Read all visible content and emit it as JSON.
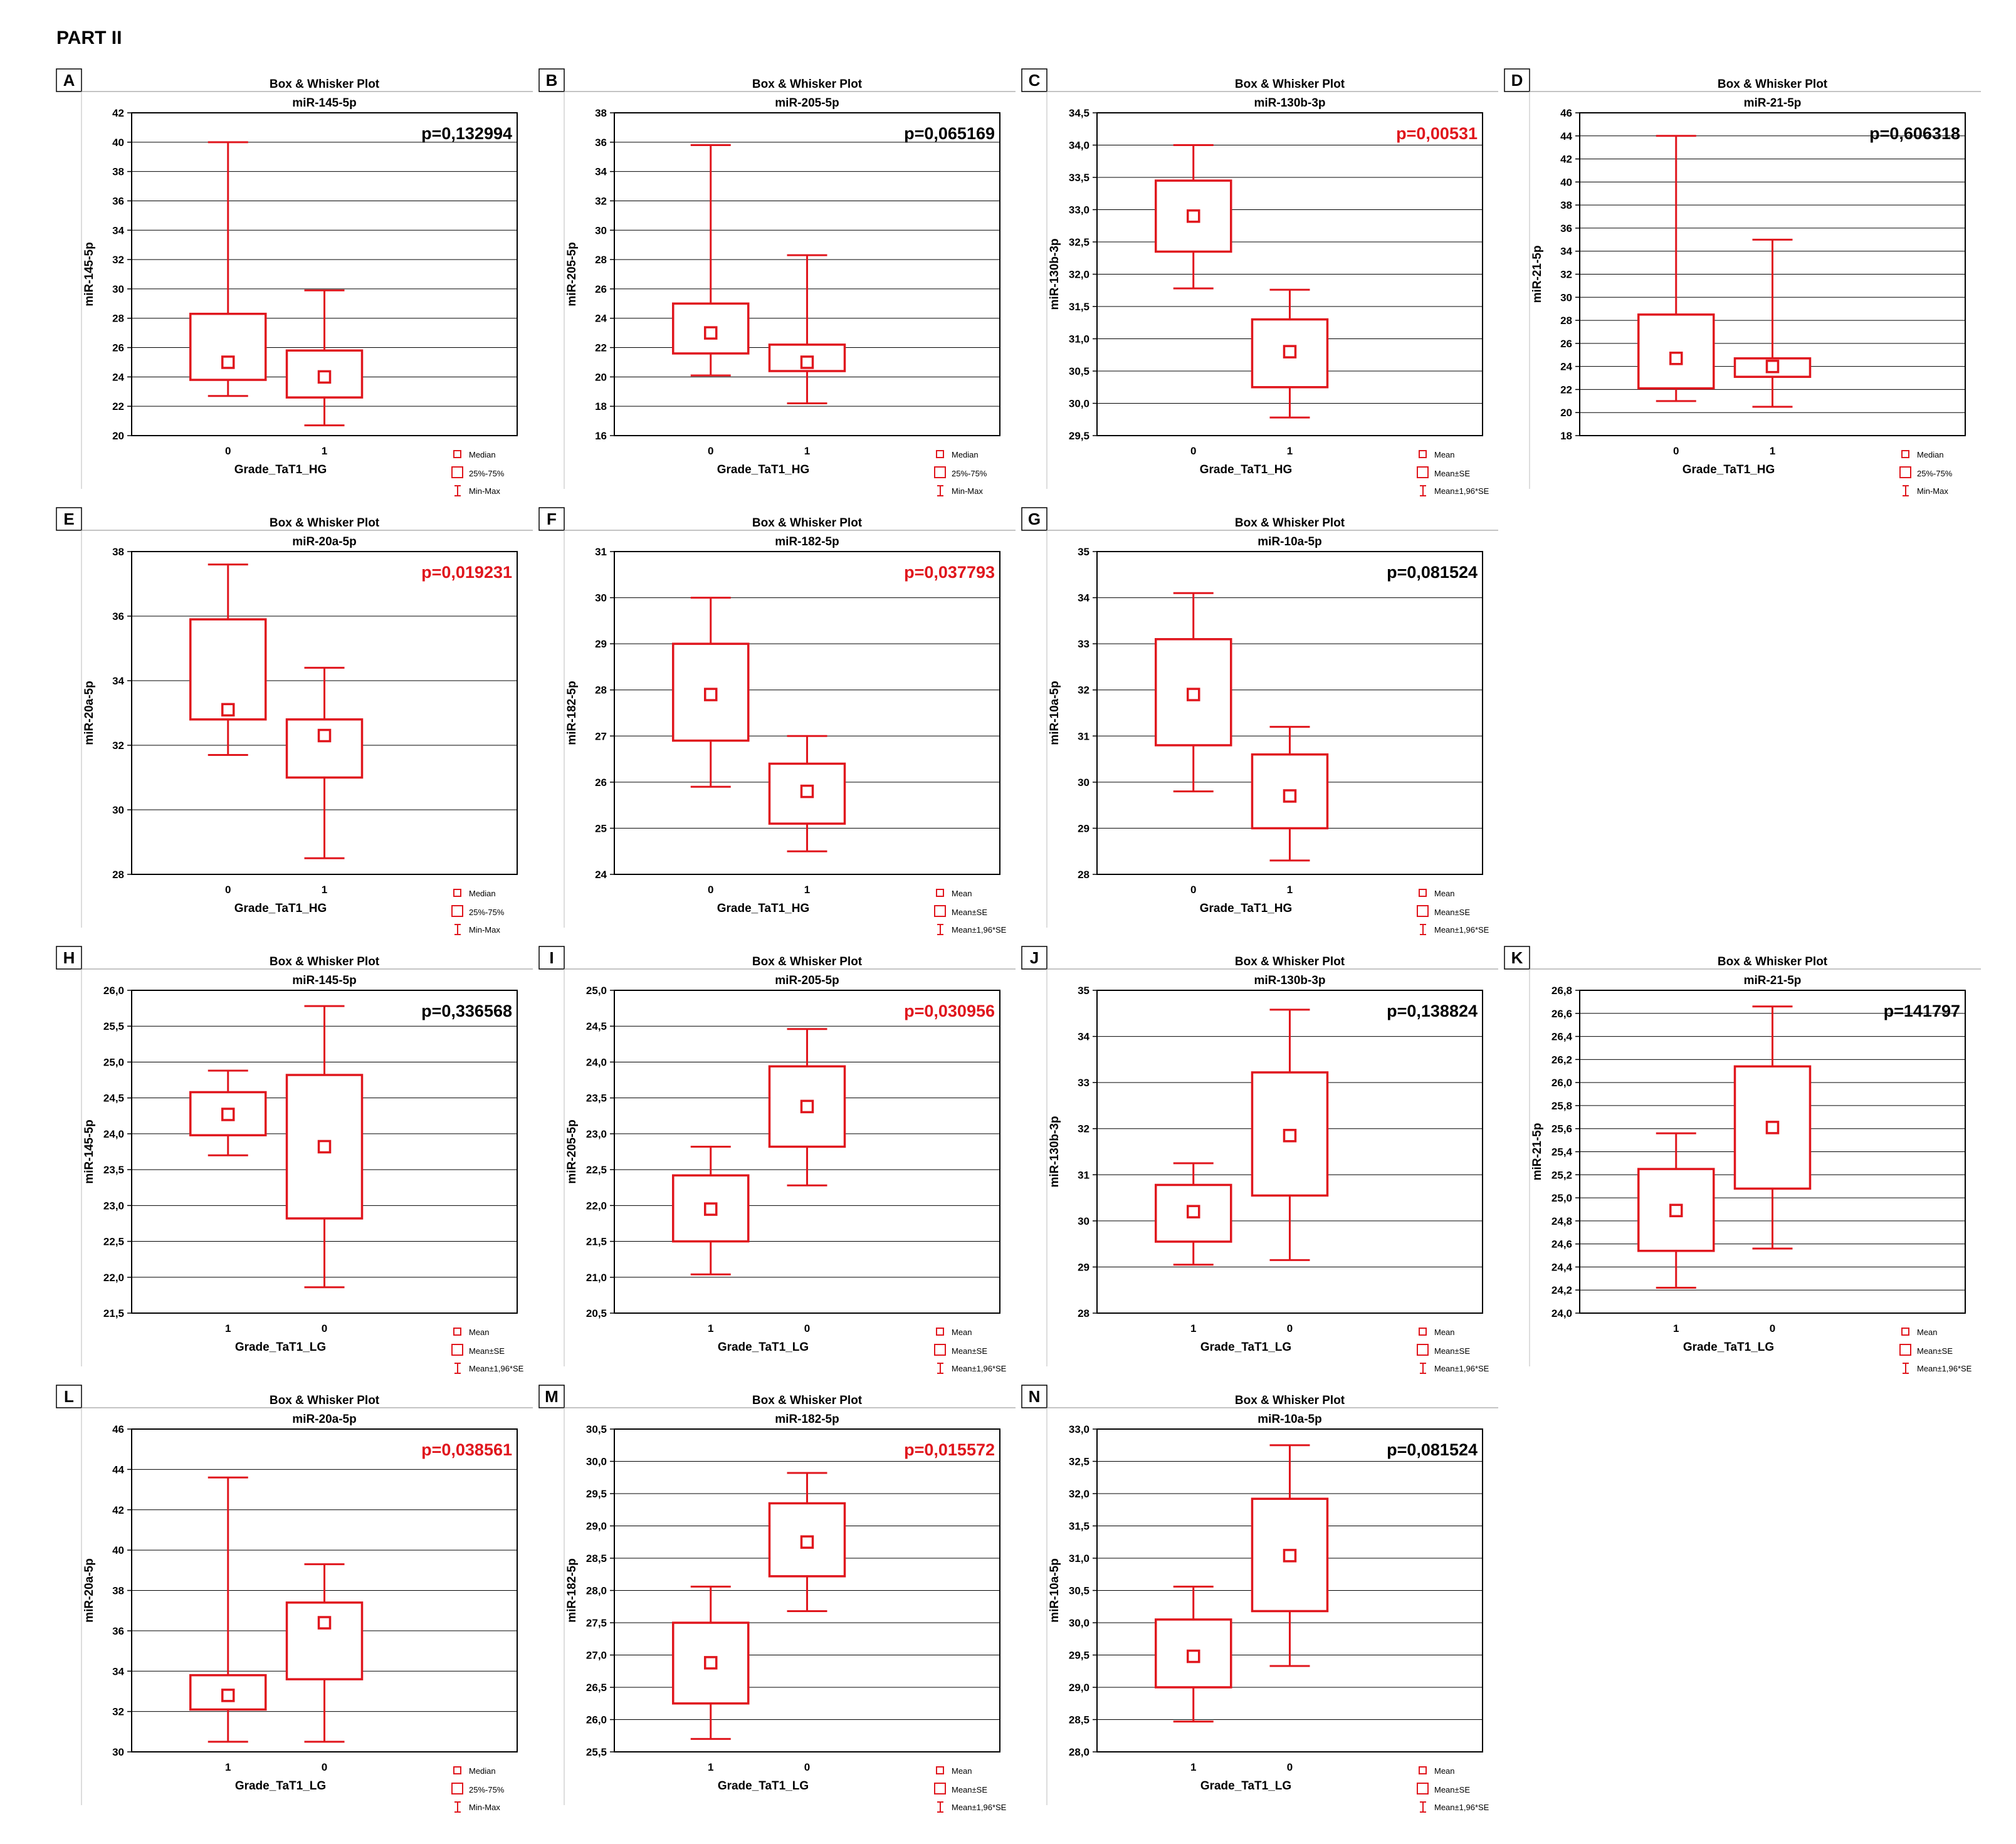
{
  "part_title": "PART II",
  "colors": {
    "box": "#e0161d",
    "grid": "#000000",
    "text": "#000000",
    "pvalue_sig": "#e0161d",
    "pvalue_ns": "#000000"
  },
  "legend_sets": {
    "median": [
      "Median",
      "25%-75%",
      "Min-Max"
    ],
    "mean": [
      "Mean",
      "Mean±SE",
      "Mean±1,96*SE"
    ]
  },
  "chart_data": [
    {
      "panel": "A",
      "type": "box",
      "title": "Box & Whisker Plot",
      "subtitle": "miR-145-5p",
      "ylabel": "miR-145-5p",
      "xlabel": "Grade_TaT1_HG",
      "ylim": [
        20,
        42
      ],
      "yticks": [
        20,
        22,
        24,
        26,
        28,
        30,
        32,
        34,
        36,
        38,
        40,
        42
      ],
      "tick_decimals": 0,
      "categories": [
        "0",
        "1"
      ],
      "center": [
        25,
        24
      ],
      "box_low": [
        23.8,
        22.6
      ],
      "box_high": [
        28.3,
        25.8
      ],
      "whisk_low": [
        22.7,
        20.7
      ],
      "whisk_high": [
        40,
        29.9
      ],
      "pvalue": "p=0,132994",
      "significant": false,
      "legend": "median"
    },
    {
      "panel": "B",
      "type": "box",
      "title": "Box & Whisker Plot",
      "subtitle": "miR-205-5p",
      "ylabel": "miR-205-5p",
      "xlabel": "Grade_TaT1_HG",
      "ylim": [
        16,
        38
      ],
      "yticks": [
        16,
        18,
        20,
        22,
        24,
        26,
        28,
        30,
        32,
        34,
        36,
        38
      ],
      "tick_decimals": 0,
      "categories": [
        "0",
        "1"
      ],
      "center": [
        23,
        21
      ],
      "box_low": [
        21.6,
        20.4
      ],
      "box_high": [
        25,
        22.2
      ],
      "whisk_low": [
        20.1,
        18.2
      ],
      "whisk_high": [
        35.8,
        28.3
      ],
      "pvalue": "p=0,065169",
      "significant": false,
      "legend": "median"
    },
    {
      "panel": "C",
      "type": "box",
      "title": "Box & Whisker Plot",
      "subtitle": "miR-130b-3p",
      "ylabel": "miR-130b-3p",
      "xlabel": "Grade_TaT1_HG",
      "ylim": [
        29.5,
        34.5
      ],
      "yticks": [
        29.5,
        30,
        30.5,
        31,
        31.5,
        32,
        32.5,
        33,
        33.5,
        34,
        34.5
      ],
      "tick_decimals": 1,
      "categories": [
        "0",
        "1"
      ],
      "center": [
        32.9,
        30.8
      ],
      "box_low": [
        32.35,
        30.25
      ],
      "box_high": [
        33.45,
        31.3
      ],
      "whisk_low": [
        31.78,
        29.78
      ],
      "whisk_high": [
        34,
        31.76
      ],
      "pvalue": "p=0,00531",
      "significant": true,
      "legend": "mean"
    },
    {
      "panel": "D",
      "type": "box",
      "title": "Box & Whisker Plot",
      "subtitle": "miR-21-5p",
      "ylabel": "miR-21-5p",
      "xlabel": "Grade_TaT1_HG",
      "ylim": [
        18,
        46
      ],
      "yticks": [
        18,
        20,
        22,
        24,
        26,
        28,
        30,
        32,
        34,
        36,
        38,
        40,
        42,
        44,
        46
      ],
      "tick_decimals": 0,
      "categories": [
        "0",
        "1"
      ],
      "center": [
        24.7,
        24
      ],
      "box_low": [
        22.1,
        23.1
      ],
      "box_high": [
        28.5,
        24.7
      ],
      "whisk_low": [
        21,
        20.5
      ],
      "whisk_high": [
        44,
        35
      ],
      "pvalue": "p=0,606318",
      "significant": false,
      "legend": "median"
    },
    {
      "panel": "E",
      "type": "box",
      "title": "Box & Whisker Plot",
      "subtitle": "miR-20a-5p",
      "ylabel": "miR-20a-5p",
      "xlabel": "Grade_TaT1_HG",
      "ylim": [
        28,
        38
      ],
      "yticks": [
        28,
        30,
        32,
        34,
        36,
        38
      ],
      "tick_decimals": 0,
      "categories": [
        "0",
        "1"
      ],
      "center": [
        33.1,
        32.3
      ],
      "box_low": [
        32.8,
        31
      ],
      "box_high": [
        35.9,
        32.8
      ],
      "whisk_low": [
        31.7,
        28.5
      ],
      "whisk_high": [
        37.6,
        34.4
      ],
      "pvalue": "p=0,019231",
      "significant": true,
      "legend": "median"
    },
    {
      "panel": "F",
      "type": "box",
      "title": "Box & Whisker Plot",
      "subtitle": "miR-182-5p",
      "ylabel": "miR-182-5p",
      "xlabel": "Grade_TaT1_HG",
      "ylim": [
        24,
        31
      ],
      "yticks": [
        24,
        25,
        26,
        27,
        28,
        29,
        30,
        31
      ],
      "tick_decimals": 0,
      "categories": [
        "0",
        "1"
      ],
      "center": [
        27.9,
        25.8
      ],
      "box_low": [
        26.9,
        25.1
      ],
      "box_high": [
        29,
        26.4
      ],
      "whisk_low": [
        25.9,
        24.5
      ],
      "whisk_high": [
        30,
        27
      ],
      "pvalue": "p=0,037793",
      "significant": true,
      "legend": "mean"
    },
    {
      "panel": "G",
      "type": "box",
      "title": "Box & Whisker Plot",
      "subtitle": "miR-10a-5p",
      "ylabel": "miR-10a-5p",
      "xlabel": "Grade_TaT1_HG",
      "ylim": [
        28,
        35
      ],
      "yticks": [
        28,
        29,
        30,
        31,
        32,
        33,
        34,
        35
      ],
      "tick_decimals": 0,
      "categories": [
        "0",
        "1"
      ],
      "center": [
        31.9,
        29.7
      ],
      "box_low": [
        30.8,
        29
      ],
      "box_high": [
        33.1,
        30.6
      ],
      "whisk_low": [
        29.8,
        28.3
      ],
      "whisk_high": [
        34.1,
        31.2
      ],
      "pvalue": "p=0,081524",
      "significant": false,
      "legend": "mean"
    },
    {
      "panel": "H",
      "type": "box",
      "title": "Box & Whisker Plot",
      "subtitle": "miR-145-5p",
      "ylabel": "miR-145-5p",
      "xlabel": "Grade_TaT1_LG",
      "ylim": [
        21.5,
        26
      ],
      "yticks": [
        21.5,
        22,
        22.5,
        23,
        23.5,
        24,
        24.5,
        25,
        25.5,
        26
      ],
      "tick_decimals": 1,
      "categories": [
        "1",
        "0"
      ],
      "center": [
        24.27,
        23.82
      ],
      "box_low": [
        23.98,
        22.82
      ],
      "box_high": [
        24.58,
        24.82
      ],
      "whisk_low": [
        23.7,
        21.86
      ],
      "whisk_high": [
        24.88,
        25.78
      ],
      "pvalue": "p=0,336568",
      "significant": false,
      "legend": "mean"
    },
    {
      "panel": "I",
      "type": "box",
      "title": "Box & Whisker Plot",
      "subtitle": "miR-205-5p",
      "ylabel": "miR-205-5p",
      "xlabel": "Grade_TaT1_LG",
      "ylim": [
        20.5,
        25
      ],
      "yticks": [
        20.5,
        21,
        21.5,
        22,
        22.5,
        23,
        23.5,
        24,
        24.5,
        25
      ],
      "tick_decimals": 1,
      "categories": [
        "1",
        "0"
      ],
      "center": [
        21.95,
        23.38
      ],
      "box_low": [
        21.5,
        22.82
      ],
      "box_high": [
        22.42,
        23.94
      ],
      "whisk_low": [
        21.04,
        22.28
      ],
      "whisk_high": [
        22.82,
        24.46
      ],
      "pvalue": "p=0,030956",
      "significant": true,
      "legend": "mean"
    },
    {
      "panel": "J",
      "type": "box",
      "title": "Box & Whisker Plot",
      "subtitle": "miR-130b-3p",
      "ylabel": "miR-130b-3p",
      "xlabel": "Grade_TaT1_LG",
      "ylim": [
        28,
        35
      ],
      "yticks": [
        28,
        29,
        30,
        31,
        32,
        33,
        34,
        35
      ],
      "tick_decimals": 0,
      "categories": [
        "1",
        "0"
      ],
      "center": [
        30.2,
        31.85
      ],
      "box_low": [
        29.55,
        30.55
      ],
      "box_high": [
        30.78,
        33.22
      ],
      "whisk_low": [
        29.05,
        29.15
      ],
      "whisk_high": [
        31.25,
        34.58
      ],
      "pvalue": "p=0,138824",
      "significant": false,
      "legend": "mean"
    },
    {
      "panel": "K",
      "type": "box",
      "title": "Box & Whisker Plot",
      "subtitle": "miR-21-5p",
      "ylabel": "miR-21-5p",
      "xlabel": "Grade_TaT1_LG",
      "ylim": [
        24,
        26.8
      ],
      "yticks": [
        24,
        24.2,
        24.4,
        24.6,
        24.8,
        25,
        25.2,
        25.4,
        25.6,
        25.8,
        26,
        26.2,
        26.4,
        26.6,
        26.8
      ],
      "tick_decimals": 1,
      "categories": [
        "1",
        "0"
      ],
      "center": [
        24.89,
        25.61
      ],
      "box_low": [
        24.54,
        25.08
      ],
      "box_high": [
        25.25,
        26.14
      ],
      "whisk_low": [
        24.22,
        24.56
      ],
      "whisk_high": [
        25.56,
        26.66
      ],
      "pvalue": "p=141797",
      "significant": false,
      "legend": "mean"
    },
    {
      "panel": "L",
      "type": "box",
      "title": "Box & Whisker Plot",
      "subtitle": "miR-20a-5p",
      "ylabel": "miR-20a-5p",
      "xlabel": "Grade_TaT1_LG",
      "ylim": [
        30,
        46
      ],
      "yticks": [
        30,
        32,
        34,
        36,
        38,
        40,
        42,
        44,
        46
      ],
      "tick_decimals": 0,
      "categories": [
        "1",
        "0"
      ],
      "center": [
        32.8,
        36.4
      ],
      "box_low": [
        32.1,
        33.6
      ],
      "box_high": [
        33.8,
        37.4
      ],
      "whisk_low": [
        30.5,
        30.5
      ],
      "whisk_high": [
        43.6,
        39.3
      ],
      "pvalue": "p=0,038561",
      "significant": true,
      "legend": "median"
    },
    {
      "panel": "M",
      "type": "box",
      "title": "Box & Whisker Plot",
      "subtitle": "miR-182-5p",
      "ylabel": "miR-182-5p",
      "xlabel": "Grade_TaT1_LG",
      "ylim": [
        25.5,
        30.5
      ],
      "yticks": [
        25.5,
        26,
        26.5,
        27,
        27.5,
        28,
        28.5,
        29,
        29.5,
        30,
        30.5
      ],
      "tick_decimals": 1,
      "categories": [
        "1",
        "0"
      ],
      "center": [
        26.88,
        28.75
      ],
      "box_low": [
        26.25,
        28.22
      ],
      "box_high": [
        27.5,
        29.35
      ],
      "whisk_low": [
        25.7,
        27.68
      ],
      "whisk_high": [
        28.06,
        29.82
      ],
      "pvalue": "p=0,015572",
      "significant": true,
      "legend": "mean"
    },
    {
      "panel": "N",
      "type": "box",
      "title": "Box & Whisker Plot",
      "subtitle": "miR-10a-5p",
      "ylabel": "miR-10a-5p",
      "xlabel": "Grade_TaT1_LG",
      "ylim": [
        28,
        33
      ],
      "yticks": [
        28,
        28.5,
        29,
        29.5,
        30,
        30.5,
        31,
        31.5,
        32,
        32.5,
        33
      ],
      "tick_decimals": 1,
      "categories": [
        "1",
        "0"
      ],
      "center": [
        29.48,
        31.04
      ],
      "box_low": [
        29,
        30.18
      ],
      "box_high": [
        30.05,
        31.92
      ],
      "whisk_low": [
        28.47,
        29.33
      ],
      "whisk_high": [
        30.56,
        32.75
      ],
      "pvalue": "p=0,081524",
      "significant": false,
      "legend": "mean"
    }
  ]
}
